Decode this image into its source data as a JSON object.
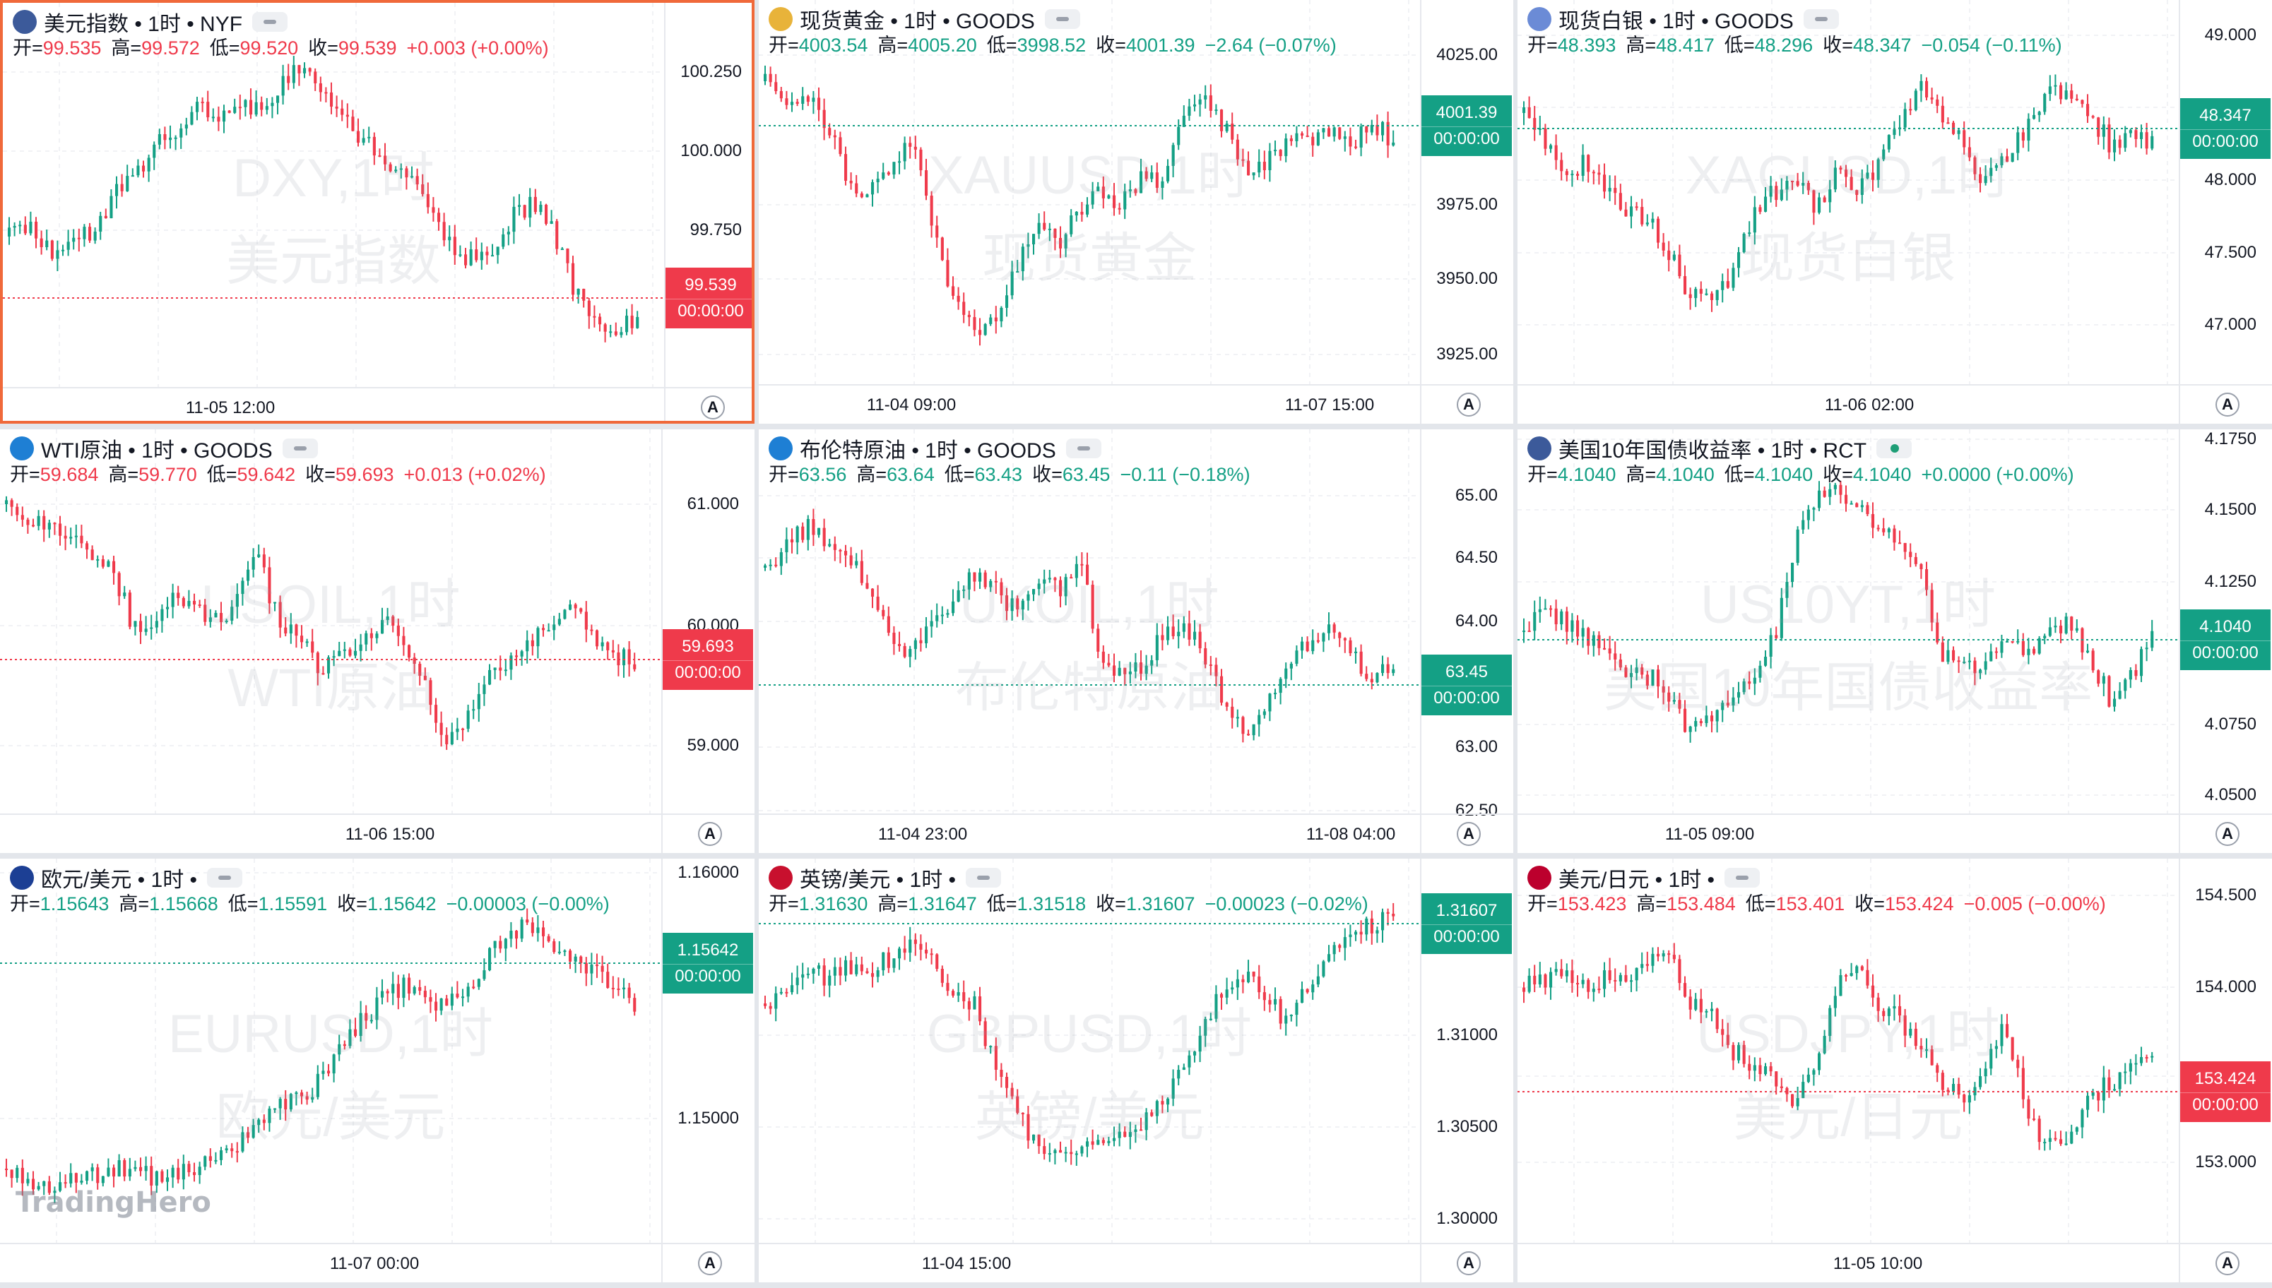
{
  "colors": {
    "up": "#14a085",
    "down": "#ef3a4b",
    "grid": "#f1f2f5",
    "active_border": "#f0693a"
  },
  "brand": "TradingHero",
  "axis_button": "A",
  "panes": [
    {
      "id": "dxy",
      "active": true,
      "icon": "us-flag-icon",
      "icon_color": "#3c5a9a",
      "title": "美元指数 • 1时 • NYF",
      "ohlc": {
        "o_label": "开=",
        "o": "99.535",
        "h_label": "高=",
        "h": "99.572",
        "l_label": "低=",
        "l": "99.520",
        "c_label": "收=",
        "c": "99.539",
        "chg": "+0.003 (+0.00%)",
        "dir": "down"
      },
      "watermark": [
        "DXY,1时",
        "美元指数"
      ],
      "price_ticks": [
        "100.250",
        "100.000",
        "99.750"
      ],
      "time_ticks": [
        "11-05 12:00"
      ],
      "last": {
        "value": "99.539",
        "time": "00:00:00",
        "dir": "down"
      },
      "series_path": [
        0.58,
        0.55,
        0.63,
        0.6,
        0.56,
        0.45,
        0.38,
        0.3,
        0.24,
        0.18,
        0.2,
        0.15,
        0.2,
        0.1,
        0.05,
        0.12,
        0.2,
        0.28,
        0.35,
        0.38,
        0.5,
        0.6,
        0.65,
        0.62,
        0.52,
        0.48,
        0.56,
        0.75,
        0.85,
        0.9,
        0.82
      ]
    },
    {
      "id": "xau",
      "active": false,
      "icon": "gold-icon",
      "icon_color": "#e8b33a",
      "title": "现货黄金 • 1时 • GOODS",
      "ohlc": {
        "o_label": "开=",
        "o": "4003.54",
        "h_label": "高=",
        "h": "4005.20",
        "l_label": "低=",
        "l": "3998.52",
        "c_label": "收=",
        "c": "4001.39",
        "chg": "−2.64 (−0.07%)",
        "dir": "up"
      },
      "watermark": [
        "XAUUSD,1时",
        "现货黄金"
      ],
      "price_ticks": [
        "4025.00",
        "3975.00",
        "3950.00",
        "3925.00"
      ],
      "time_ticks": [
        "11-04 09:00",
        "11-07 15:00"
      ],
      "last": {
        "value": "4001.39",
        "time": "00:00:00",
        "dir": "up"
      },
      "series_path": [
        0.1,
        0.18,
        0.15,
        0.25,
        0.42,
        0.45,
        0.35,
        0.3,
        0.55,
        0.8,
        0.88,
        0.85,
        0.7,
        0.55,
        0.62,
        0.5,
        0.45,
        0.48,
        0.4,
        0.42,
        0.2,
        0.15,
        0.25,
        0.38,
        0.35,
        0.3,
        0.28,
        0.25,
        0.3,
        0.22,
        0.3
      ]
    },
    {
      "id": "xag",
      "active": false,
      "icon": "silver-icon",
      "icon_color": "#6b8bd6",
      "title": "现货白银 • 1时 • GOODS",
      "ohlc": {
        "o_label": "开=",
        "o": "48.393",
        "h_label": "高=",
        "h": "48.417",
        "l_label": "低=",
        "l": "48.296",
        "c_label": "收=",
        "c": "48.347",
        "chg": "−0.054 (−0.11%)",
        "dir": "up"
      },
      "watermark": [
        "XAGUSD,1时",
        "现货白银"
      ],
      "price_ticks": [
        "49.000",
        "48.500",
        "48.000",
        "47.500",
        "47.000"
      ],
      "time_ticks": [
        "11-06 02:00"
      ],
      "last": {
        "value": "48.347",
        "time": "00:00:00",
        "dir": "up"
      },
      "series_path": [
        0.2,
        0.3,
        0.4,
        0.35,
        0.45,
        0.5,
        0.55,
        0.65,
        0.78,
        0.8,
        0.7,
        0.5,
        0.45,
        0.42,
        0.5,
        0.38,
        0.45,
        0.35,
        0.22,
        0.12,
        0.2,
        0.3,
        0.42,
        0.35,
        0.25,
        0.15,
        0.12,
        0.2,
        0.3,
        0.28,
        0.3
      ]
    },
    {
      "id": "wti",
      "active": false,
      "icon": "oil-icon",
      "icon_color": "#1e7fd4",
      "title": "WTI原油 • 1时 • GOODS",
      "ohlc": {
        "o_label": "开=",
        "o": "59.684",
        "h_label": "高=",
        "h": "59.770",
        "l_label": "低=",
        "l": "59.642",
        "c_label": "收=",
        "c": "59.693",
        "chg": "+0.013 (+0.02%)",
        "dir": "down"
      },
      "watermark": [
        "USOIL,1时",
        "WTI原油"
      ],
      "price_ticks": [
        "61.000",
        "60.000",
        "59.000"
      ],
      "time_ticks": [
        "11-06 15:00"
      ],
      "last": {
        "value": "59.693",
        "time": "00:00:00",
        "dir": "down"
      },
      "series_path": [
        0.08,
        0.12,
        0.15,
        0.2,
        0.22,
        0.28,
        0.45,
        0.5,
        0.35,
        0.4,
        0.45,
        0.38,
        0.25,
        0.45,
        0.5,
        0.6,
        0.55,
        0.5,
        0.45,
        0.5,
        0.65,
        0.82,
        0.75,
        0.6,
        0.58,
        0.52,
        0.45,
        0.38,
        0.5,
        0.55,
        0.58
      ]
    },
    {
      "id": "brent",
      "active": false,
      "icon": "oil-icon",
      "icon_color": "#1e7fd4",
      "title": "布伦特原油 • 1时 • GOODS",
      "ohlc": {
        "o_label": "开=",
        "o": "63.56",
        "h_label": "高=",
        "h": "63.64",
        "l_label": "低=",
        "l": "63.43",
        "c_label": "收=",
        "c": "63.45",
        "chg": "−0.11 (−0.18%)",
        "dir": "up"
      },
      "watermark": [
        "UKOIL,1时",
        "布伦特原油"
      ],
      "price_ticks": [
        "65.00",
        "64.50",
        "64.00",
        "63.00",
        "62.50"
      ],
      "time_ticks": [
        "11-04 23:00",
        "11-08 04:00"
      ],
      "last": {
        "value": "63.45",
        "time": "00:00:00",
        "dir": "up"
      },
      "series_path": [
        0.28,
        0.22,
        0.15,
        0.2,
        0.25,
        0.35,
        0.5,
        0.55,
        0.45,
        0.38,
        0.3,
        0.35,
        0.42,
        0.3,
        0.35,
        0.25,
        0.55,
        0.62,
        0.58,
        0.5,
        0.45,
        0.55,
        0.72,
        0.82,
        0.7,
        0.6,
        0.5,
        0.45,
        0.55,
        0.62,
        0.6
      ]
    },
    {
      "id": "us10y",
      "active": false,
      "icon": "us-flag-icon",
      "icon_color": "#3c5a9a",
      "title": "美国10年国债收益率 • 1时 • RCT",
      "ohlc": {
        "o_label": "开=",
        "o": "4.1040",
        "h_label": "高=",
        "h": "4.1040",
        "l_label": "低=",
        "l": "4.1040",
        "c_label": "收=",
        "c": "4.1040",
        "chg": "+0.0000 (+0.00%)",
        "dir": "up"
      },
      "watermark": [
        "US10YT,1时",
        "美国10年国债收益率"
      ],
      "price_ticks": [
        "4.1750",
        "4.1500",
        "4.1250",
        "4.0750",
        "4.0500"
      ],
      "time_ticks": [
        "11-05 09:00"
      ],
      "last": {
        "value": "4.1040",
        "time": "00:00:00",
        "dir": "up"
      },
      "series_path": [
        0.48,
        0.42,
        0.45,
        0.5,
        0.55,
        0.6,
        0.62,
        0.7,
        0.8,
        0.75,
        0.68,
        0.6,
        0.5,
        0.2,
        0.05,
        0.03,
        0.1,
        0.15,
        0.2,
        0.3,
        0.55,
        0.6,
        0.58,
        0.52,
        0.55,
        0.5,
        0.45,
        0.55,
        0.7,
        0.62,
        0.5
      ]
    },
    {
      "id": "eurusd",
      "active": false,
      "icon": "eu-flag-icon",
      "icon_color": "#1c3f94",
      "title": "欧元/美元 • 1时 •",
      "ohlc": {
        "o_label": "开=",
        "o": "1.15643",
        "h_label": "高=",
        "h": "1.15668",
        "l_label": "低=",
        "l": "1.15591",
        "c_label": "收=",
        "c": "1.15642",
        "chg": "−0.00003 (−0.00%)",
        "dir": "up"
      },
      "watermark": [
        "EURUSD,1时",
        "欧元/美元"
      ],
      "price_ticks": [
        "1.16000",
        "1.15000"
      ],
      "time_ticks": [
        "11-07 00:00"
      ],
      "last": {
        "value": "1.15642",
        "time": "00:00:00",
        "dir": "up"
      },
      "series_path": [
        0.82,
        0.85,
        0.88,
        0.86,
        0.84,
        0.83,
        0.82,
        0.85,
        0.84,
        0.82,
        0.8,
        0.75,
        0.7,
        0.62,
        0.58,
        0.55,
        0.45,
        0.35,
        0.28,
        0.25,
        0.3,
        0.32,
        0.25,
        0.15,
        0.08,
        0.05,
        0.12,
        0.18,
        0.2,
        0.25,
        0.3
      ]
    },
    {
      "id": "gbpusd",
      "active": false,
      "icon": "uk-flag-icon",
      "icon_color": "#c8102e",
      "title": "英镑/美元 • 1时 •",
      "ohlc": {
        "o_label": "开=",
        "o": "1.31630",
        "h_label": "高=",
        "h": "1.31647",
        "l_label": "低=",
        "l": "1.31518",
        "c_label": "收=",
        "c": "1.31607",
        "chg": "−0.00023 (−0.02%)",
        "dir": "up"
      },
      "watermark": [
        "GBPUSD,1时",
        "英镑/美元"
      ],
      "price_ticks": [
        "1.31000",
        "1.30500",
        "1.30000"
      ],
      "time_ticks": [
        "11-04 15:00"
      ],
      "last": {
        "value": "1.31607",
        "time": "00:00:00",
        "dir": "up"
      },
      "series_path": [
        0.3,
        0.25,
        0.2,
        0.22,
        0.18,
        0.2,
        0.15,
        0.12,
        0.18,
        0.25,
        0.3,
        0.5,
        0.65,
        0.75,
        0.8,
        0.75,
        0.72,
        0.7,
        0.68,
        0.6,
        0.5,
        0.35,
        0.25,
        0.22,
        0.3,
        0.35,
        0.25,
        0.15,
        0.08,
        0.05,
        0.02
      ]
    },
    {
      "id": "usdjpy",
      "active": false,
      "icon": "jp-flag-icon",
      "icon_color": "#bc002d",
      "title": "美元/日元 • 1时 •",
      "ohlc": {
        "o_label": "开=",
        "o": "153.423",
        "h_label": "高=",
        "h": "153.484",
        "l_label": "低=",
        "l": "153.401",
        "c_label": "收=",
        "c": "153.424",
        "chg": "−0.005 (−0.00%)",
        "dir": "down"
      },
      "watermark": [
        "USDJPY,1时",
        "美元/日元"
      ],
      "price_ticks": [
        "154.500",
        "154.000",
        "153.500",
        "153.000"
      ],
      "time_ticks": [
        "11-05 10:00"
      ],
      "last": {
        "value": "153.424",
        "time": "00:00:00",
        "dir": "down"
      },
      "series_path": [
        0.25,
        0.22,
        0.2,
        0.25,
        0.22,
        0.2,
        0.18,
        0.15,
        0.3,
        0.35,
        0.45,
        0.5,
        0.55,
        0.6,
        0.48,
        0.25,
        0.2,
        0.3,
        0.35,
        0.45,
        0.55,
        0.6,
        0.5,
        0.35,
        0.65,
        0.75,
        0.72,
        0.6,
        0.55,
        0.5,
        0.48
      ]
    }
  ]
}
